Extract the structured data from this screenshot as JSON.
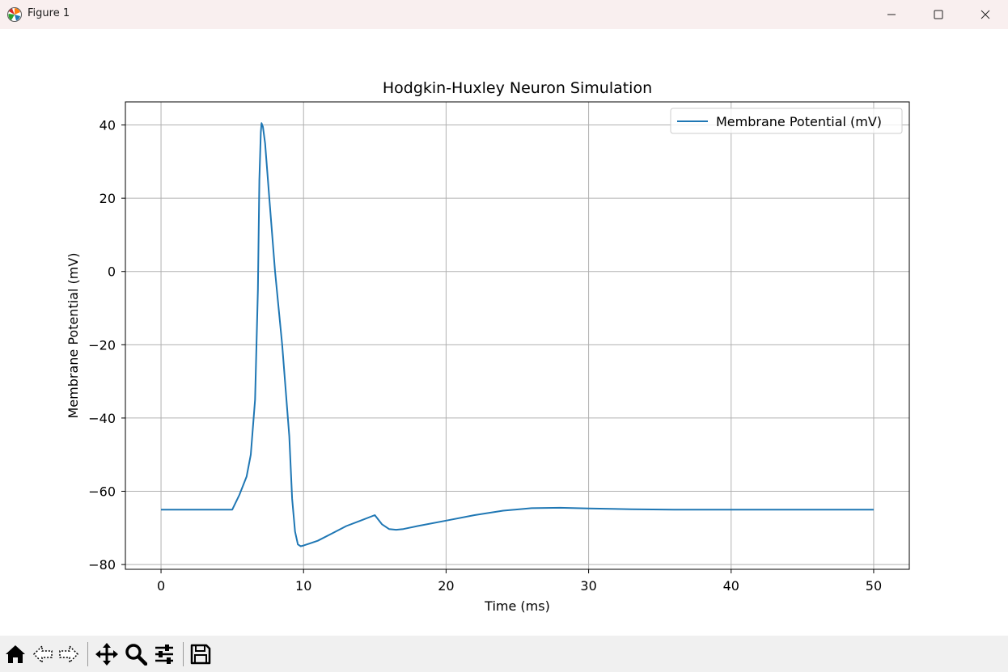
{
  "window": {
    "title": "Figure 1",
    "icons": [
      "matplotlib-app-icon",
      "minimize-icon",
      "maximize-icon",
      "close-icon"
    ]
  },
  "toolbar": {
    "tools": [
      "home-icon",
      "back-icon",
      "forward-icon",
      "pan-icon",
      "zoom-icon",
      "configure-subplots-icon",
      "save-icon"
    ]
  },
  "colors": {
    "line": "#1f77b4",
    "grid": "#b0b0b0",
    "titlebar": "#f9efef",
    "toolbar": "#f0f0f0"
  },
  "chart_data": {
    "type": "line",
    "title": "Hodgkin-Huxley Neuron Simulation",
    "xlabel": "Time (ms)",
    "ylabel": "Membrane Potential (mV)",
    "xlim": [
      -2.5,
      52.5
    ],
    "ylim": [
      -81.3,
      46.3
    ],
    "xticks": [
      0,
      10,
      20,
      30,
      40,
      50
    ],
    "yticks": [
      -80,
      -60,
      -40,
      -20,
      0,
      20,
      40
    ],
    "xtick_labels": [
      "0",
      "10",
      "20",
      "30",
      "40",
      "50"
    ],
    "ytick_labels": [
      "−80",
      "−60",
      "−40",
      "−20",
      "0",
      "20",
      "40"
    ],
    "grid": true,
    "legend_position": "top-right",
    "series": [
      {
        "name": "Membrane Potential (mV)",
        "x": [
          0,
          5.0,
          5.5,
          6.0,
          6.3,
          6.6,
          6.8,
          6.9,
          7.0,
          7.05,
          7.15,
          7.3,
          7.6,
          8.0,
          8.5,
          9.0,
          9.2,
          9.4,
          9.6,
          9.8,
          10.0,
          11.0,
          12.0,
          13.0,
          14.0,
          15.0,
          15.5,
          16.0,
          16.5,
          17.0,
          18.0,
          20.0,
          22.0,
          24.0,
          26.0,
          28.0,
          30.0,
          33.0,
          36.0,
          40.0,
          45.0,
          50.0
        ],
        "y": [
          -65,
          -65,
          -61,
          -56,
          -50,
          -35,
          -5,
          25,
          38,
          40.5,
          39.5,
          35,
          20,
          0,
          -20,
          -45,
          -62,
          -71,
          -74.5,
          -75,
          -74.8,
          -73.5,
          -71.5,
          -69.5,
          -68,
          -66.5,
          -69,
          -70.3,
          -70.5,
          -70.3,
          -69.5,
          -68,
          -66.5,
          -65.3,
          -64.6,
          -64.5,
          -64.7,
          -64.9,
          -65,
          -65,
          -65,
          -65
        ]
      }
    ]
  }
}
